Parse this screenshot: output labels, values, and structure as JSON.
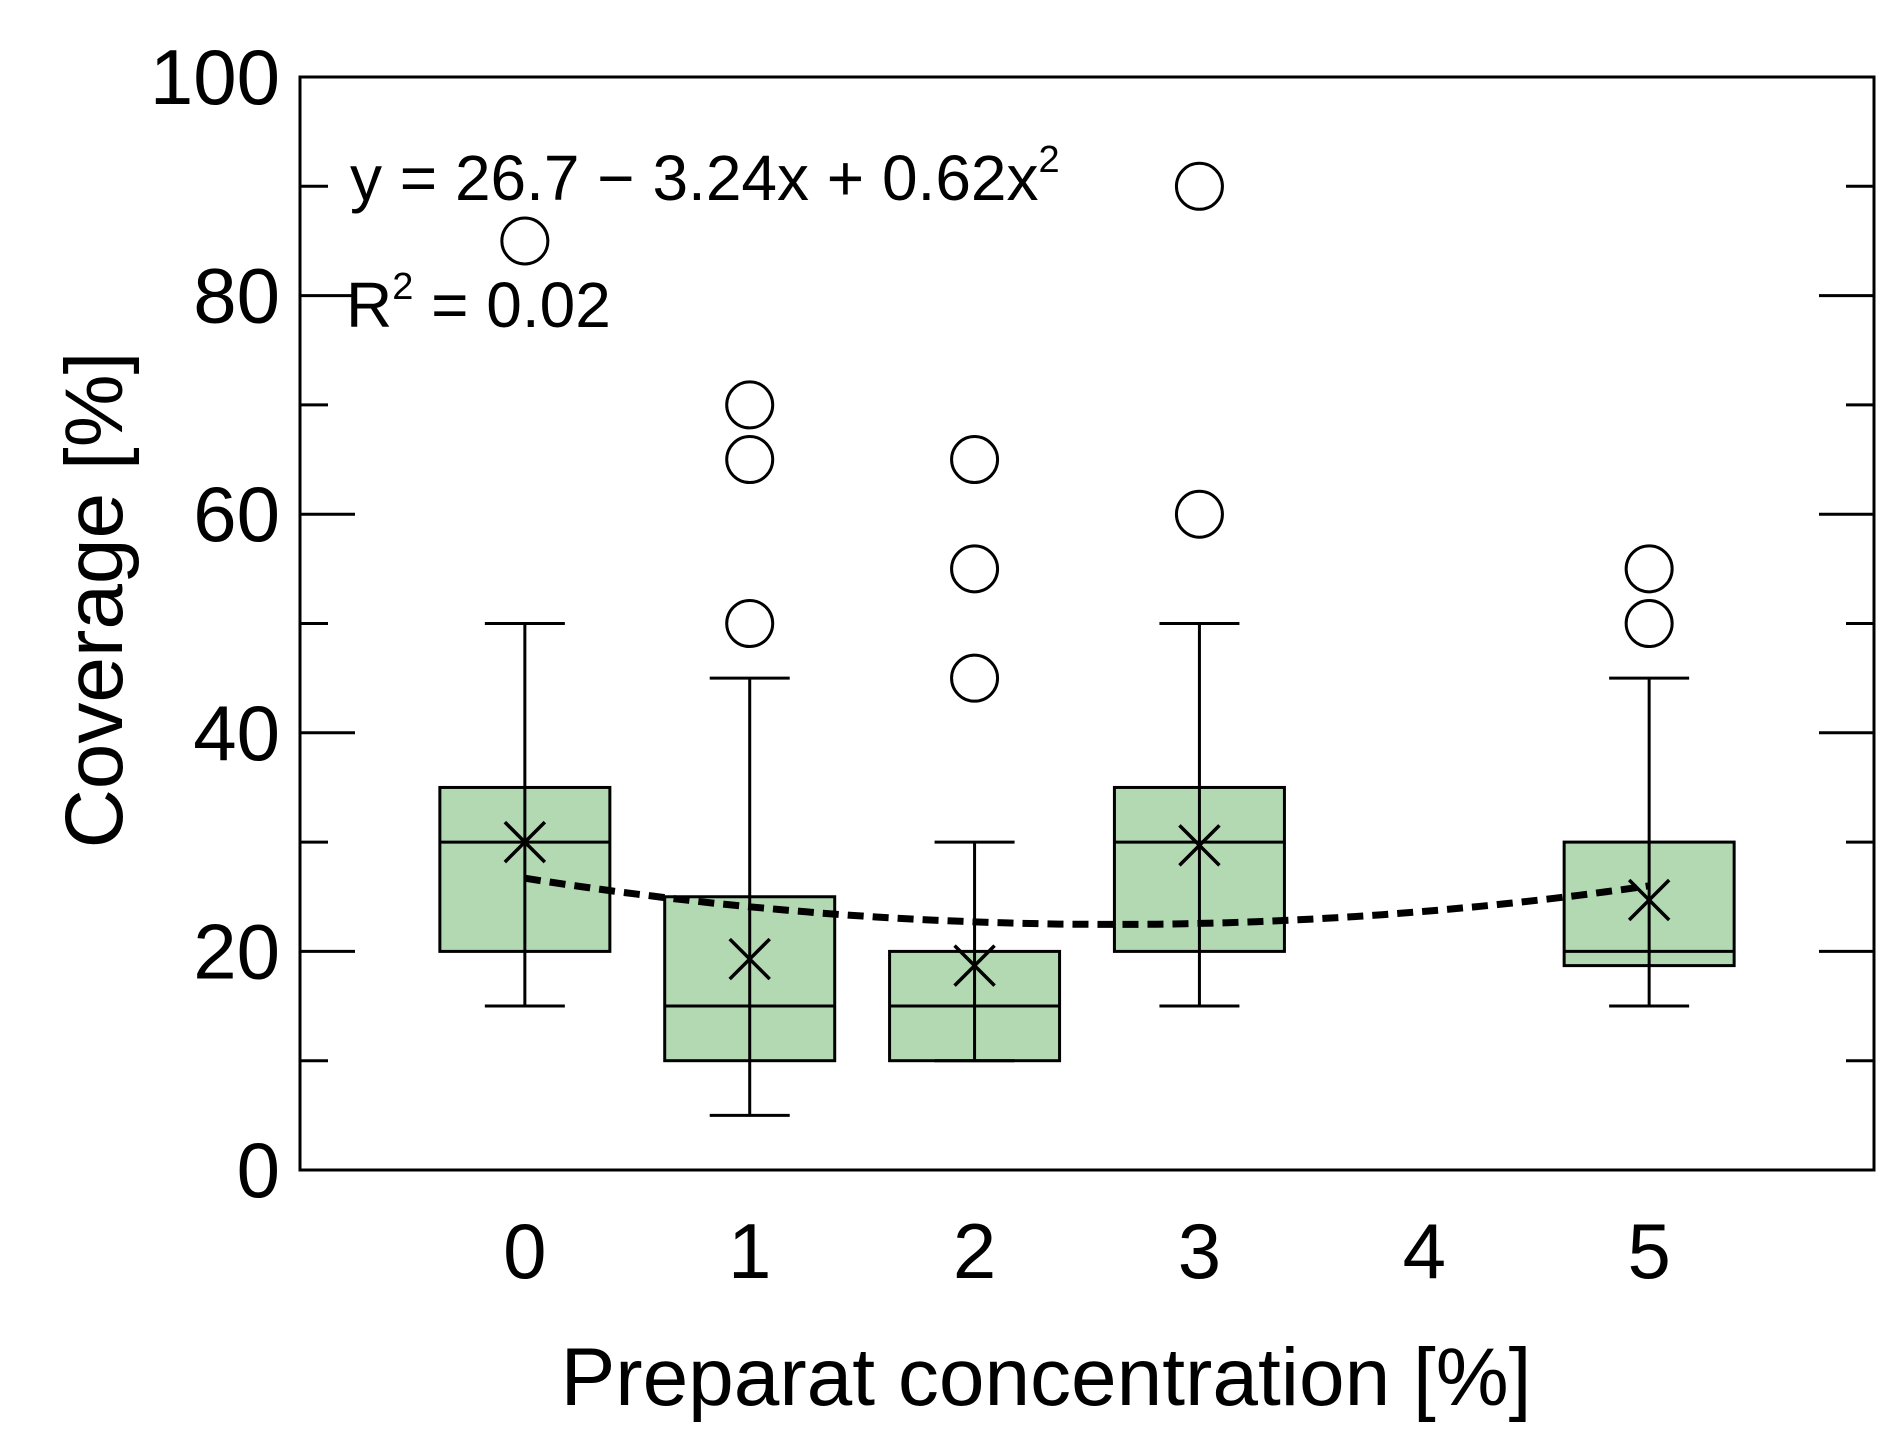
{
  "chart_data": {
    "type": "box",
    "title": "",
    "xlabel": "Preparat concentration [%]",
    "ylabel": "Coverage [%]",
    "xlim": [
      -1,
      6
    ],
    "ylim": [
      0,
      100
    ],
    "x_ticks": [
      "0",
      "1",
      "2",
      "3",
      "4",
      "5"
    ],
    "y_ticks": [
      "0",
      "20",
      "40",
      "60",
      "80",
      "100"
    ],
    "box_color": "#b3d9b3",
    "boxes": [
      {
        "x": 0,
        "whisker_low": 15,
        "q1": 20,
        "median": 30,
        "q3": 35,
        "whisker_high": 50,
        "mean": 30,
        "outliers": [
          85
        ]
      },
      {
        "x": 1,
        "whisker_low": 5,
        "q1": 10,
        "median": 15,
        "q3": 25,
        "whisker_high": 45,
        "mean": 19.3,
        "outliers": [
          50,
          65,
          70
        ]
      },
      {
        "x": 2,
        "whisker_low": 10,
        "q1": 10,
        "median": 15,
        "q3": 20,
        "whisker_high": 30,
        "mean": 18.7,
        "outliers": [
          45,
          55,
          65
        ]
      },
      {
        "x": 3,
        "whisker_low": 15,
        "q1": 20,
        "median": 30,
        "q3": 35,
        "whisker_high": 50,
        "mean": 29.7,
        "outliers": [
          60,
          90
        ]
      },
      {
        "x": 5,
        "whisker_low": 15,
        "q1": 18.7,
        "median": 20,
        "q3": 30,
        "whisker_high": 45,
        "mean": 24.7,
        "outliers": [
          50,
          55
        ]
      }
    ],
    "fit": {
      "a": 26.7,
      "b": -3.24,
      "c": 0.62,
      "x_range": [
        0,
        5
      ],
      "style": "dashed"
    },
    "annotations": {
      "equation_main": "y = 26.7 − 3.24x + 0.62x",
      "equation_exp": "2",
      "r2_prefix": "R",
      "r2_exp": "2",
      "r2_value": " = 0.02"
    }
  }
}
